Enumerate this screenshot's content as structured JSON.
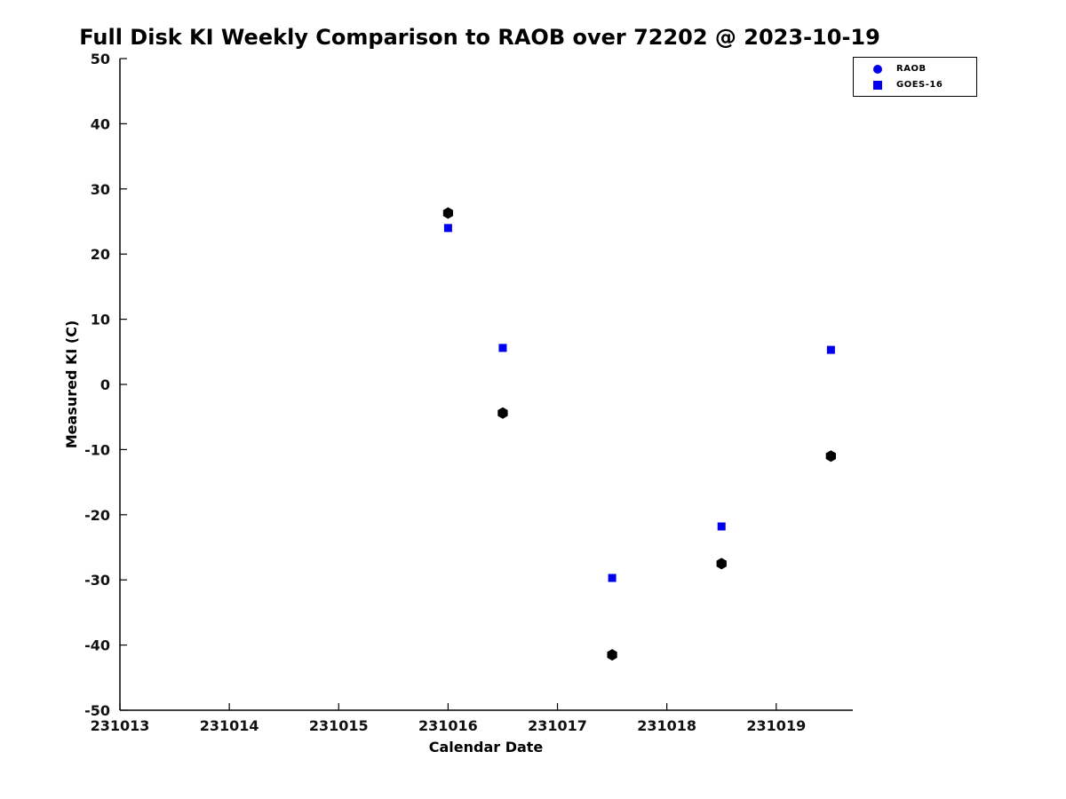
{
  "chart_data": {
    "type": "scatter",
    "title": "Full Disk KI Weekly Comparison to RAOB over 72202 @ 2023-10-19",
    "xlabel": "Calendar Date",
    "ylabel": "Measured KI (C)",
    "xlim": [
      231013,
      231019.7
    ],
    "ylim": [
      -50,
      50
    ],
    "xticks": [
      231013,
      231014,
      231015,
      231016,
      231017,
      231018,
      231019
    ],
    "yticks": [
      -50,
      -40,
      -30,
      -20,
      -10,
      0,
      10,
      20,
      30,
      40,
      50
    ],
    "grid": false,
    "legend_position": "top-right",
    "series": [
      {
        "name": "RAOB",
        "marker": "hexagon",
        "color": "#000000",
        "points": [
          [
            231016.0,
            26.3
          ],
          [
            231016.5,
            -4.4
          ],
          [
            231017.5,
            -41.5
          ],
          [
            231018.5,
            -27.5
          ],
          [
            231019.5,
            -11.0
          ]
        ]
      },
      {
        "name": "GOES-16",
        "marker": "square",
        "color": "#0000ee",
        "points": [
          [
            231016.0,
            24.0
          ],
          [
            231016.5,
            5.6
          ],
          [
            231017.5,
            -29.7
          ],
          [
            231018.5,
            -21.8
          ],
          [
            231019.5,
            5.3
          ]
        ]
      }
    ]
  },
  "legend": {
    "items": [
      {
        "label": "RAOB",
        "marker": "circle",
        "color": "#0000ee"
      },
      {
        "label": "GOES-16",
        "marker": "square",
        "color": "#0000ee"
      }
    ]
  }
}
